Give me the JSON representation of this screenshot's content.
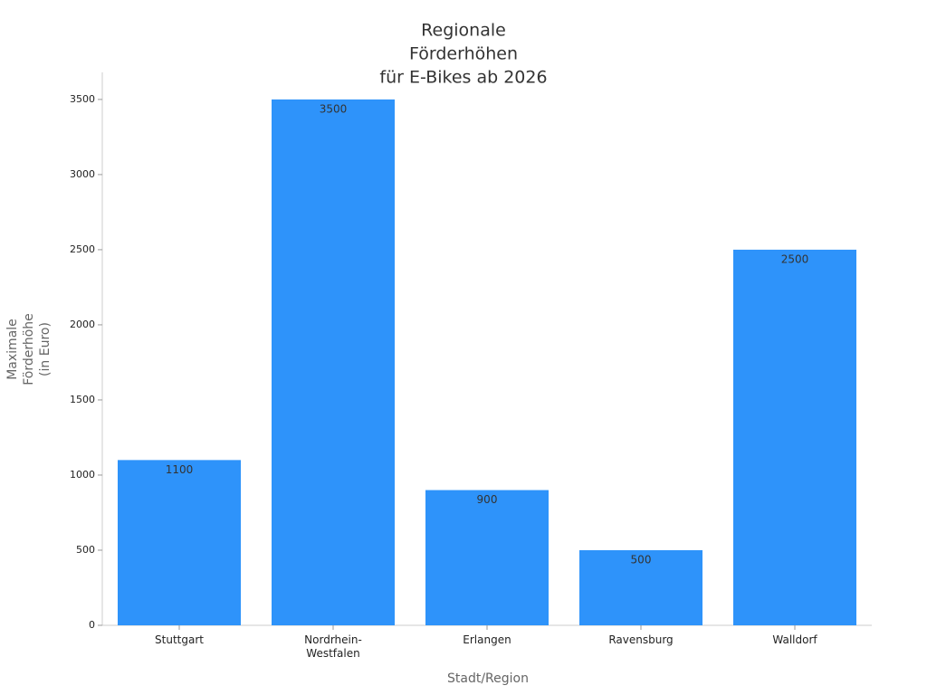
{
  "chart_data": {
    "type": "bar",
    "title": [
      "Regionale",
      "Förderhöhen",
      "für E-Bikes ab 2026"
    ],
    "xlabel": "Stadt/Region",
    "ylabel": [
      "Maximale",
      "Förderhöhe",
      "(in Euro)"
    ],
    "categories": [
      "Stuttgart",
      "Nordrhein-Westfalen",
      "Erlangen",
      "Ravensburg",
      "Walldorf"
    ],
    "values": [
      1100,
      3500,
      900,
      500,
      2500
    ],
    "color": "#2e93fa",
    "ylim": [
      0,
      3680
    ],
    "yticks": [
      0,
      500,
      1000,
      1500,
      2000,
      2500,
      3000,
      3500
    ],
    "grid": false
  }
}
